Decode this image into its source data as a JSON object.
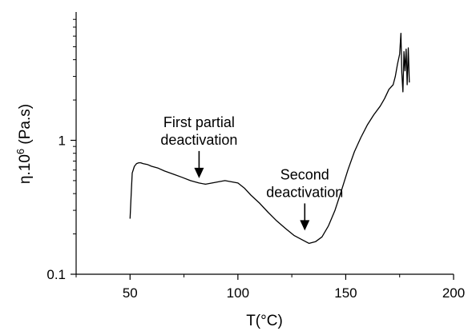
{
  "chart_data": {
    "type": "line",
    "xlabel": "T(°C)",
    "ylabel": {
      "base": "η.10",
      "sup": "6",
      "unit": " (Pa.s)"
    },
    "xlim": [
      25,
      200
    ],
    "ylim": [
      0.1,
      8
    ],
    "yscale": "log",
    "xticks": [
      50,
      100,
      150,
      200
    ],
    "yticks": [
      {
        "value": 0.1,
        "label": "0.1"
      },
      {
        "value": 1,
        "label": "1"
      }
    ],
    "grid": false,
    "series": [
      {
        "x": [
          50,
          50.6,
          51,
          52,
          53,
          54,
          55,
          56,
          58,
          60,
          63,
          66,
          70,
          74,
          78,
          82,
          85,
          88,
          91,
          94,
          97,
          100,
          103,
          106,
          110,
          114,
          118,
          122,
          126,
          130,
          133,
          136,
          139,
          142,
          145,
          148,
          151,
          154,
          157,
          160,
          163,
          166,
          168,
          170,
          172,
          173,
          174,
          175,
          175.6,
          176,
          176.5,
          177,
          177.5,
          178,
          178.5,
          179,
          179.5
        ],
        "y": [
          0.26,
          0.42,
          0.57,
          0.64,
          0.67,
          0.68,
          0.68,
          0.67,
          0.66,
          0.64,
          0.62,
          0.59,
          0.56,
          0.53,
          0.5,
          0.48,
          0.47,
          0.48,
          0.49,
          0.5,
          0.49,
          0.48,
          0.44,
          0.39,
          0.34,
          0.29,
          0.25,
          0.22,
          0.195,
          0.18,
          0.17,
          0.175,
          0.19,
          0.23,
          0.3,
          0.42,
          0.6,
          0.82,
          1.05,
          1.3,
          1.55,
          1.8,
          2.05,
          2.4,
          2.6,
          3.0,
          3.7,
          4.4,
          6.3,
          3.2,
          2.3,
          4.6,
          3.3,
          4.8,
          2.6,
          4.9,
          2.7
        ]
      }
    ],
    "annotations": [
      {
        "lines": [
          "First partial",
          "deactivation"
        ],
        "arrow_to": {
          "x": 82,
          "y": 0.48
        }
      },
      {
        "lines": [
          "Second",
          "deactivation"
        ],
        "arrow_to": {
          "x": 131,
          "y": 0.195
        }
      }
    ]
  }
}
